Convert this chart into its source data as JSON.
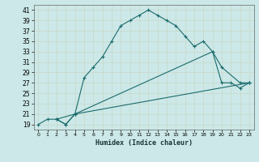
{
  "xlabel": "Humidex (Indice chaleur)",
  "bg_color": "#cce8e8",
  "grid_color": "#b0d4d4",
  "line_color": "#1a6b6b",
  "xlim": [
    -0.5,
    23.5
  ],
  "ylim": [
    18,
    42
  ],
  "yticks": [
    19,
    21,
    23,
    25,
    27,
    29,
    31,
    33,
    35,
    37,
    39,
    41
  ],
  "xticks": [
    0,
    1,
    2,
    3,
    4,
    5,
    6,
    7,
    8,
    9,
    10,
    11,
    12,
    13,
    14,
    15,
    16,
    17,
    18,
    19,
    20,
    21,
    22,
    23
  ],
  "line1_x": [
    0,
    1,
    2,
    3,
    4,
    5,
    6,
    7,
    8,
    9,
    10,
    11,
    12,
    13,
    14,
    15,
    16,
    17,
    18,
    19,
    20,
    21,
    22,
    23
  ],
  "line1_y": [
    19,
    20,
    20,
    19,
    21,
    28,
    30,
    32,
    35,
    38,
    39,
    40,
    41,
    40,
    39,
    38,
    36,
    34,
    35,
    33,
    27,
    27,
    26,
    27
  ],
  "line2_x": [
    2,
    3,
    4,
    19,
    20,
    22,
    23
  ],
  "line2_y": [
    20,
    19,
    21,
    33,
    30,
    27,
    27
  ],
  "line3_x": [
    2,
    4,
    23
  ],
  "line3_y": [
    20,
    21,
    27
  ],
  "marker": "+"
}
